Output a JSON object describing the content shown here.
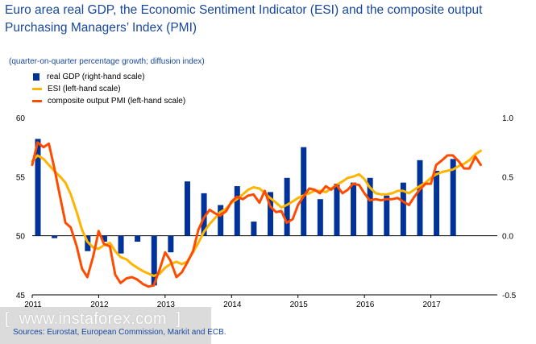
{
  "title": "Euro area real GDP, the Economic Sentiment Indicator (ESI) and the composite output Purchasing Managers’ Index (PMI)",
  "subtitle": "(quarter-on-quarter percentage growth; diffusion index)",
  "legend": {
    "gdp": "real GDP (right-hand scale)",
    "esi": "ESI (left-hand scale)",
    "pmi": "composite output PMI (left-hand scale)"
  },
  "source": "Sources: Eurostat, European Commission, Markit and ECB.",
  "watermark": "www.instaforex.com",
  "colors": {
    "gdp": "#003299",
    "esi": "#ffb400",
    "pmi": "#ff4b00",
    "axis": "#000000",
    "text": "#17479e"
  },
  "chart_data": {
    "type": "bar",
    "x_tick_labels": [
      "2011",
      "2012",
      "2013",
      "2014",
      "2015",
      "2016",
      "2017"
    ],
    "left_axis": {
      "ticks": [
        "45",
        "50",
        "55",
        "60"
      ],
      "ylim": [
        45,
        60
      ]
    },
    "right_axis": {
      "ticks": [
        "-0.5",
        "0.0",
        "0.5",
        "1.0"
      ],
      "ylim": [
        -0.5,
        1.0
      ]
    },
    "series": [
      {
        "name": "real GDP (right-hand scale)",
        "axis": "right",
        "kind": "bar",
        "x": [
          2011.0,
          2011.25,
          2011.5,
          2011.75,
          2012.0,
          2012.25,
          2012.5,
          2012.75,
          2013.0,
          2013.25,
          2013.5,
          2013.75,
          2014.0,
          2014.25,
          2014.5,
          2014.75,
          2015.0,
          2015.25,
          2015.5,
          2015.75,
          2016.0,
          2016.25,
          2016.5,
          2016.75,
          2017.0,
          2017.25,
          2017.5
        ],
        "values": [
          0.82,
          -0.02,
          0.0,
          -0.13,
          -0.05,
          -0.15,
          -0.05,
          -0.42,
          -0.14,
          0.46,
          0.36,
          0.26,
          0.42,
          0.12,
          0.37,
          0.49,
          0.75,
          0.31,
          0.44,
          0.45,
          0.49,
          0.34,
          0.45,
          0.64,
          0.55,
          0.65,
          0.0
        ],
        "show": [
          true,
          true,
          false,
          true,
          true,
          true,
          true,
          true,
          true,
          true,
          true,
          true,
          true,
          true,
          true,
          true,
          true,
          true,
          true,
          true,
          true,
          true,
          true,
          true,
          true,
          true,
          false
        ]
      },
      {
        "name": "ESI (left-hand scale)",
        "axis": "left",
        "kind": "line",
        "x": [
          2011.0,
          2011.08,
          2011.17,
          2011.25,
          2011.33,
          2011.42,
          2011.5,
          2011.58,
          2011.67,
          2011.75,
          2011.83,
          2011.92,
          2012.0,
          2012.08,
          2012.17,
          2012.25,
          2012.33,
          2012.42,
          2012.5,
          2012.58,
          2012.67,
          2012.75,
          2012.83,
          2012.92,
          2013.0,
          2013.08,
          2013.17,
          2013.25,
          2013.33,
          2013.42,
          2013.5,
          2013.58,
          2013.67,
          2013.75,
          2013.83,
          2013.92,
          2014.0,
          2014.08,
          2014.17,
          2014.25,
          2014.33,
          2014.42,
          2014.5,
          2014.58,
          2014.67,
          2014.75,
          2014.83,
          2014.92,
          2015.0,
          2015.08,
          2015.17,
          2015.25,
          2015.33,
          2015.42,
          2015.5,
          2015.58,
          2015.67,
          2015.75,
          2015.83,
          2015.92,
          2016.0,
          2016.08,
          2016.17,
          2016.25,
          2016.33,
          2016.42,
          2016.5,
          2016.58,
          2016.67,
          2016.75,
          2016.83,
          2016.92,
          2017.0,
          2017.08,
          2017.17,
          2017.25,
          2017.33,
          2017.42,
          2017.5,
          2017.58,
          2017.67,
          2017.75
        ],
        "values": [
          56.3,
          56.8,
          56.5,
          56.0,
          55.5,
          55.0,
          54.5,
          53.5,
          52.0,
          50.5,
          49.5,
          49.0,
          48.9,
          49.2,
          49.4,
          48.7,
          48.2,
          48.0,
          47.6,
          47.3,
          47.0,
          46.8,
          46.6,
          46.8,
          47.3,
          47.6,
          47.8,
          47.6,
          47.8,
          48.6,
          49.4,
          50.3,
          51.0,
          51.5,
          52.0,
          52.3,
          52.8,
          53.1,
          53.5,
          53.9,
          54.1,
          54.0,
          53.6,
          53.2,
          52.8,
          52.4,
          52.6,
          52.9,
          53.2,
          53.4,
          53.6,
          53.8,
          53.8,
          53.7,
          54.0,
          54.3,
          54.6,
          54.9,
          55.0,
          55.2,
          54.8,
          54.1,
          53.6,
          53.5,
          53.5,
          53.6,
          53.8,
          53.8,
          53.6,
          53.9,
          54.2,
          54.5,
          54.9,
          55.2,
          55.4,
          55.5,
          55.6,
          55.9,
          56.1,
          56.4,
          56.9,
          57.2
        ]
      },
      {
        "name": "composite output PMI (left-hand scale)",
        "axis": "left",
        "kind": "line",
        "x": [
          2011.0,
          2011.08,
          2011.17,
          2011.25,
          2011.33,
          2011.42,
          2011.5,
          2011.58,
          2011.67,
          2011.75,
          2011.83,
          2011.92,
          2012.0,
          2012.08,
          2012.17,
          2012.25,
          2012.33,
          2012.42,
          2012.5,
          2012.58,
          2012.67,
          2012.75,
          2012.83,
          2012.92,
          2013.0,
          2013.08,
          2013.17,
          2013.25,
          2013.33,
          2013.42,
          2013.5,
          2013.58,
          2013.67,
          2013.75,
          2013.83,
          2013.92,
          2014.0,
          2014.08,
          2014.17,
          2014.25,
          2014.33,
          2014.42,
          2014.5,
          2014.58,
          2014.67,
          2014.75,
          2014.83,
          2014.92,
          2015.0,
          2015.08,
          2015.17,
          2015.25,
          2015.33,
          2015.42,
          2015.5,
          2015.58,
          2015.67,
          2015.75,
          2015.83,
          2015.92,
          2016.0,
          2016.08,
          2016.17,
          2016.25,
          2016.33,
          2016.42,
          2016.5,
          2016.58,
          2016.67,
          2016.75,
          2016.83,
          2016.92,
          2017.0,
          2017.08,
          2017.17,
          2017.25,
          2017.33,
          2017.42,
          2017.5,
          2017.58,
          2017.67,
          2017.75
        ],
        "values": [
          56.0,
          57.9,
          57.5,
          57.8,
          55.8,
          53.3,
          51.1,
          50.7,
          49.1,
          47.2,
          46.5,
          48.3,
          50.4,
          49.3,
          49.1,
          46.7,
          46.0,
          46.4,
          46.5,
          46.3,
          45.9,
          45.7,
          45.8,
          47.2,
          48.6,
          47.9,
          46.5,
          46.9,
          47.7,
          48.7,
          50.5,
          51.5,
          52.2,
          51.9,
          51.7,
          52.1,
          52.9,
          53.3,
          53.1,
          53.4,
          53.5,
          52.8,
          53.8,
          52.5,
          52.0,
          52.1,
          51.1,
          51.4,
          52.6,
          53.3,
          54.0,
          53.9,
          53.6,
          54.2,
          53.9,
          54.3,
          53.6,
          53.9,
          54.4,
          54.3,
          53.6,
          53.0,
          53.1,
          53.0,
          53.1,
          53.1,
          53.2,
          52.9,
          52.6,
          53.3,
          53.9,
          54.4,
          54.4,
          56.0,
          56.4,
          56.8,
          56.8,
          56.3,
          55.7,
          55.7,
          56.7,
          56.0
        ]
      }
    ]
  }
}
